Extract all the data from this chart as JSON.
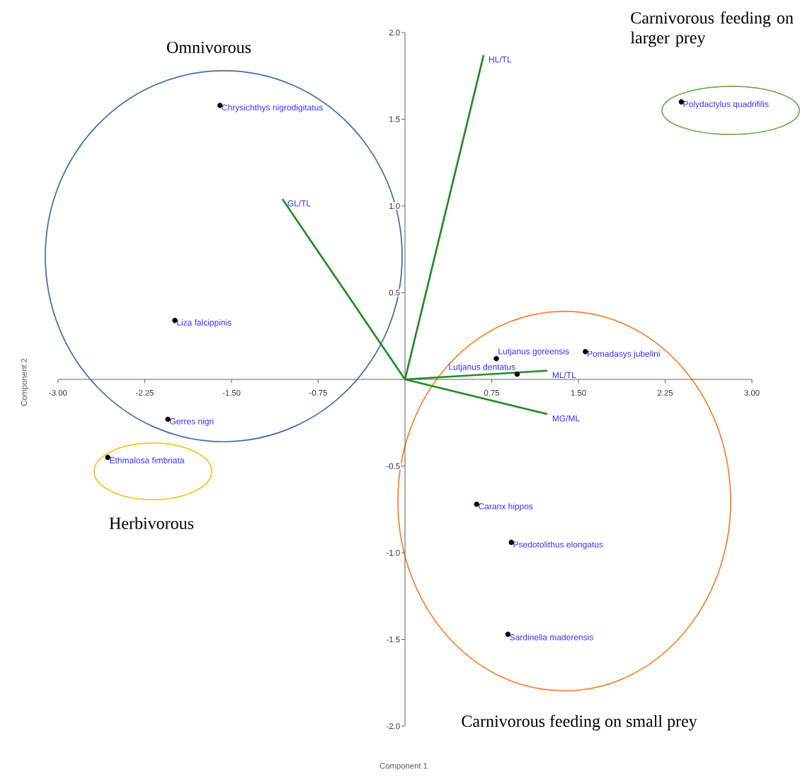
{
  "chart_data": {
    "type": "scatter",
    "marker": "circle",
    "xlabel": "Component 1",
    "ylabel": "Component 2",
    "xlim": [
      -3,
      3
    ],
    "ylim": [
      -2,
      2
    ],
    "xticks": [
      {
        "value": -3,
        "label": "-3.00"
      },
      {
        "value": -2.25,
        "label": "-2.25"
      },
      {
        "value": -1.5,
        "label": "-1.50"
      },
      {
        "value": -0.75,
        "label": "-0.75"
      },
      {
        "value": 0.75,
        "label": "0.75"
      },
      {
        "value": 1.5,
        "label": "1.50"
      },
      {
        "value": 2.25,
        "label": "2.25"
      },
      {
        "value": 3,
        "label": "3.00"
      }
    ],
    "yticks": [
      {
        "value": -2,
        "label": "-2.0"
      },
      {
        "value": -1.5,
        "label": "-1.5"
      },
      {
        "value": -1,
        "label": "-1.0"
      },
      {
        "value": -0.5,
        "label": "-0.5"
      },
      {
        "value": 0.5,
        "label": "0.5"
      },
      {
        "value": 1,
        "label": "1.0"
      },
      {
        "value": 1.5,
        "label": "1.5"
      },
      {
        "value": 2,
        "label": "2.0"
      }
    ],
    "series": [
      {
        "color": "#000000",
        "x": [
          -1.6,
          -1.99,
          -2.05,
          -2.57,
          2.39,
          0.79,
          0.97,
          1.56,
          0.62,
          0.92,
          0.89
        ],
        "values": [
          1.58,
          0.34,
          -0.23,
          -0.45,
          1.6,
          0.12,
          0.03,
          0.16,
          -0.72,
          -0.94,
          -1.47
        ]
      },
      {
        "type": "line",
        "name": "HL/TL",
        "color": "#228b22",
        "marker": "none",
        "x": [
          0,
          0.68
        ],
        "values": [
          0,
          1.87
        ]
      },
      {
        "type": "line",
        "name": "GL/TL",
        "color": "#228b22",
        "marker": "none",
        "x": [
          0,
          -1.06
        ],
        "values": [
          0,
          1.04
        ]
      },
      {
        "type": "line",
        "name": "ML/TL",
        "color": "#228b22",
        "marker": "none",
        "x": [
          0,
          1.23
        ],
        "values": [
          0,
          0.05
        ]
      },
      {
        "type": "line",
        "name": "MG/ML",
        "color": "#228b22",
        "marker": "none",
        "x": [
          0,
          1.23
        ],
        "values": [
          0,
          -0.2
        ]
      }
    ],
    "annotations": [
      {
        "text": "Chrysichthys nigrodigitatus",
        "x": -1.6,
        "y": 1.58
      },
      {
        "text": "Liza falcippinis",
        "x": -1.99,
        "y": 0.34
      },
      {
        "text": "Gerres nigri",
        "x": -2.05,
        "y": -0.23
      },
      {
        "text": "Ethmalosa fimbriata",
        "x": -2.57,
        "y": -0.45
      },
      {
        "text": "Polydactylus quadrifilis",
        "x": 2.39,
        "y": 1.6
      },
      {
        "text": "Lutjanus goreensis",
        "x": 0.79,
        "y": 0.12
      },
      {
        "text": "Lutjanus dentatus",
        "x": 0.97,
        "y": 0.03
      },
      {
        "text": "Pomadasys jubelini",
        "x": 1.56,
        "y": 0.16
      },
      {
        "text": "Caranx hippos",
        "x": 0.62,
        "y": -0.72
      },
      {
        "text": "Psedotolithus elongatus",
        "x": 0.92,
        "y": -0.94
      },
      {
        "text": "Sardinella maderensis",
        "x": 0.89,
        "y": -1.47
      },
      "Omnivorous",
      "Carnivorous feeding on larger prey",
      "Herbivorous",
      "Carnivorous feeding on small prey"
    ]
  }
}
